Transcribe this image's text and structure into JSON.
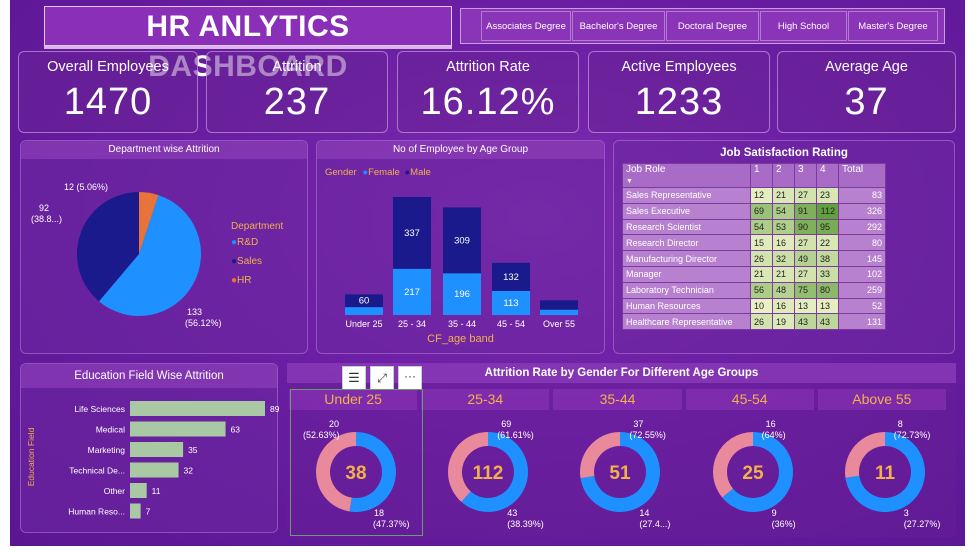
{
  "header": {
    "title": "HR ANLYTICS DASHBOARD"
  },
  "slicer": {
    "options": [
      "Associates Degree",
      "Bachelor's Degree",
      "Doctoral Degree",
      "High School",
      "Master's Degree"
    ]
  },
  "kpis": [
    {
      "label": "Overall Employees",
      "value": "1470"
    },
    {
      "label": "Attrition",
      "value": "237"
    },
    {
      "label": "Attrition Rate",
      "value": "16.12%"
    },
    {
      "label": "Active Employees",
      "value": "1233"
    },
    {
      "label": "Average Age",
      "value": "37"
    }
  ],
  "colors": {
    "blue": "#1e90ff",
    "navy": "#1a1a8c",
    "orange": "#e8743b",
    "pink": "#e98a9c",
    "bar_green": "#a9c9a4",
    "gold": "#f2b14b"
  },
  "dept_chart": {
    "title": "Department wise Attrition",
    "legend_title": "Department",
    "labels": {
      "hr": "12 (5.06%)",
      "sales_1": "92",
      "sales_2": "(38.8...)",
      "rd_1": "133",
      "rd_2": "(56.12%)"
    }
  },
  "age_chart": {
    "title": "No of Employee by Age Group",
    "legend_title": "Gender",
    "xlabel": "CF_age band"
  },
  "job_table": {
    "title": "Job Satisfaction Rating",
    "headers": [
      "Job Role",
      "1",
      "2",
      "3",
      "4",
      "Total"
    ],
    "rows": [
      {
        "role": "Sales Representative",
        "vals": [
          12,
          21,
          27,
          23
        ],
        "total": 83
      },
      {
        "role": "Sales Executive",
        "vals": [
          69,
          54,
          91,
          112
        ],
        "total": 326
      },
      {
        "role": "Research Scientist",
        "vals": [
          54,
          53,
          90,
          95
        ],
        "total": 292
      },
      {
        "role": "Research Director",
        "vals": [
          15,
          16,
          27,
          22
        ],
        "total": 80
      },
      {
        "role": "Manufacturing Director",
        "vals": [
          26,
          32,
          49,
          38
        ],
        "total": 145
      },
      {
        "role": "Manager",
        "vals": [
          21,
          21,
          27,
          33
        ],
        "total": 102
      },
      {
        "role": "Laboratory Technician",
        "vals": [
          56,
          48,
          75,
          80
        ],
        "total": 259
      },
      {
        "role": "Human Resources",
        "vals": [
          10,
          16,
          13,
          13
        ],
        "total": 52
      },
      {
        "role": "Healthcare Representative",
        "vals": [
          26,
          19,
          43,
          43
        ],
        "total": 131
      }
    ]
  },
  "edu_chart": {
    "title": "Education Field Wise Attrition",
    "ylabel": "Education Field"
  },
  "donut_section": {
    "title": "Attrition Rate by Gender For Different Age Groups"
  },
  "chart_data": [
    {
      "type": "pie",
      "title": "Department wise Attrition",
      "legend_title": "Department",
      "categories": [
        "R&D",
        "Sales",
        "HR"
      ],
      "values": [
        133,
        92,
        12
      ],
      "percent": [
        56.12,
        38.8,
        5.06
      ]
    },
    {
      "type": "bar",
      "stacked": true,
      "title": "No of Employee by Age Group",
      "xlabel": "CF_age band",
      "legend_title": "Gender",
      "categories": [
        "Under 25",
        "25 - 34",
        "35 - 44",
        "45 - 54",
        "Over 55"
      ],
      "series": [
        {
          "name": "Female",
          "values": [
            37,
            217,
            196,
            113,
            25
          ]
        },
        {
          "name": "Male",
          "values": [
            60,
            337,
            309,
            132,
            44
          ]
        }
      ],
      "data_labels": {
        "Female": [
          "",
          "217",
          "196",
          "113",
          ""
        ],
        "Male": [
          "60",
          "337",
          "309",
          "132",
          ""
        ]
      }
    },
    {
      "type": "table",
      "title": "Job Satisfaction Rating",
      "columns": [
        "Job Role",
        "1",
        "2",
        "3",
        "4",
        "Total"
      ]
    },
    {
      "type": "bar",
      "orientation": "horizontal",
      "title": "Education Field Wise Attrition",
      "ylabel": "Education Field",
      "categories": [
        "Life Sciences",
        "Medical",
        "Marketing",
        "Technical De...",
        "Other",
        "Human Reso..."
      ],
      "values": [
        89,
        63,
        35,
        32,
        11,
        7
      ]
    },
    {
      "type": "pie",
      "donut": true,
      "title": "Attrition Rate by Gender For Different Age Groups",
      "groups": [
        {
          "name": "Under 25",
          "total": 38,
          "male": 20,
          "female": 18,
          "male_label": "(52.63%)",
          "female_label": "(47.37%)"
        },
        {
          "name": "25-34",
          "total": 112,
          "male": 69,
          "female": 43,
          "male_label": "(61.61%)",
          "female_label": "(38.39%)"
        },
        {
          "name": "35-44",
          "total": 51,
          "male": 37,
          "female": 14,
          "male_label": "(72.55%)",
          "female_label": "(27.4...)"
        },
        {
          "name": "45-54",
          "total": 25,
          "male": 16,
          "female": 9,
          "male_label": "(64%)",
          "female_label": "(36%)"
        },
        {
          "name": "Above 55",
          "total": 11,
          "male": 8,
          "female": 3,
          "male_label": "(72.73%)",
          "female_label": "(27.27%)"
        }
      ]
    }
  ]
}
